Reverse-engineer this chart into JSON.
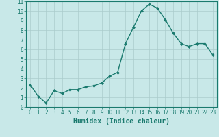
{
  "x": [
    0,
    1,
    2,
    3,
    4,
    5,
    6,
    7,
    8,
    9,
    10,
    11,
    12,
    13,
    14,
    15,
    16,
    17,
    18,
    19,
    20,
    21,
    22,
    23
  ],
  "y": [
    2.3,
    1.1,
    0.4,
    1.7,
    1.4,
    1.8,
    1.8,
    2.1,
    2.2,
    2.5,
    3.2,
    3.6,
    6.6,
    8.3,
    10.0,
    10.7,
    10.3,
    9.1,
    7.7,
    6.6,
    6.3,
    6.6,
    6.6,
    5.4
  ],
  "line_color": "#1a7a6e",
  "marker": "D",
  "marker_size": 2,
  "bg_color": "#c8e8e8",
  "grid_color": "#aacccc",
  "xlabel": "Humidex (Indice chaleur)",
  "ylim": [
    0,
    11
  ],
  "xlim_min": -0.5,
  "xlim_max": 23.5,
  "yticks": [
    0,
    1,
    2,
    3,
    4,
    5,
    6,
    7,
    8,
    9,
    10,
    11
  ],
  "xticks": [
    0,
    1,
    2,
    3,
    4,
    5,
    6,
    7,
    8,
    9,
    10,
    11,
    12,
    13,
    14,
    15,
    16,
    17,
    18,
    19,
    20,
    21,
    22,
    23
  ],
  "tick_label_fontsize": 5.5,
  "xlabel_fontsize": 7,
  "line_width": 1.0,
  "spine_color": "#1a7a6e"
}
